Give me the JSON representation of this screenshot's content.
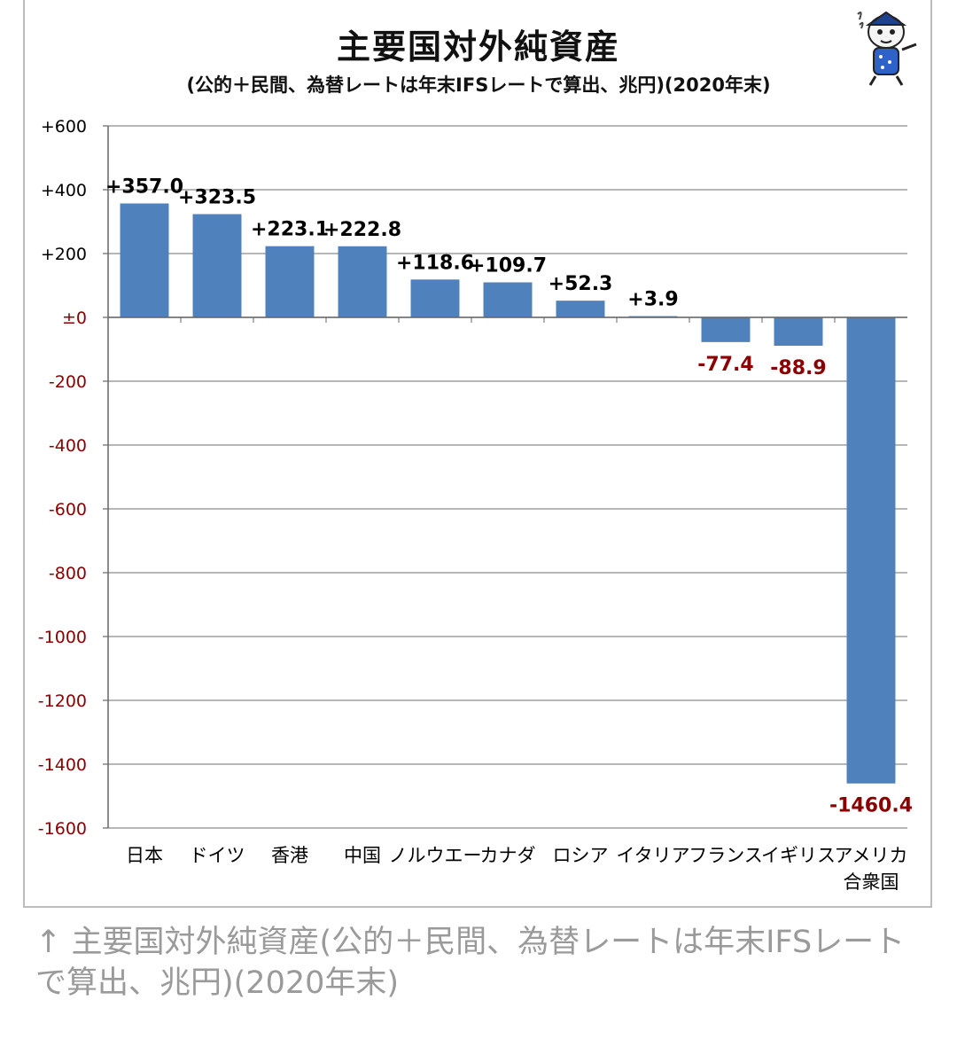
{
  "chart_data": {
    "type": "bar",
    "title": "主要国対外純資産",
    "subtitle": "(公的＋民間、為替レートは年末IFSレートで算出、兆円)(2020年末)",
    "categories": [
      "日本",
      "ドイツ",
      "香港",
      "中国",
      "ノルウエー",
      "カナダ",
      "ロシア",
      "イタリア",
      "フランス",
      "イギリス",
      "アメリカ合衆国"
    ],
    "category_lines": [
      [
        "日本"
      ],
      [
        "ドイツ"
      ],
      [
        "香港"
      ],
      [
        "中国"
      ],
      [
        "ノルウエー"
      ],
      [
        "カナダ"
      ],
      [
        "ロシア"
      ],
      [
        "イタリア"
      ],
      [
        "フランス"
      ],
      [
        "イギリス"
      ],
      [
        "アメリカ",
        "合衆国"
      ]
    ],
    "values": [
      357.0,
      323.5,
      223.1,
      222.8,
      118.6,
      109.7,
      52.3,
      3.9,
      -77.4,
      -88.9,
      -1460.4
    ],
    "data_labels": [
      "+357.0",
      "+323.5",
      "+223.1",
      "+222.8",
      "+118.6",
      "+109.7",
      "+52.3",
      "+3.9",
      "-77.4",
      "-88.9",
      "-1460.4"
    ],
    "yticks": [
      600,
      400,
      200,
      0,
      -200,
      -400,
      -600,
      -800,
      -1000,
      -1200,
      -1400,
      -1600
    ],
    "ytick_labels": [
      "+600",
      "+400",
      "+200",
      "±0",
      "-200",
      "-400",
      "-600",
      "-800",
      "-1000",
      "-1200",
      "-1400",
      "-1600"
    ],
    "ylim": [
      -1600,
      600
    ],
    "xlabel": "",
    "ylabel": "",
    "grid": true,
    "legend": "none",
    "colors": {
      "bar": "#4f81bd",
      "positive_label": "#000000",
      "negative_label": "#8b0000",
      "positive_tick": "#000000",
      "negative_tick": "#8b0000",
      "grid": "#8c8c8c"
    }
  },
  "caption": "↑ 主要国対外純資産(公的＋民間、為替レートは年末IFSレートで算出、兆円)(2020年末)"
}
